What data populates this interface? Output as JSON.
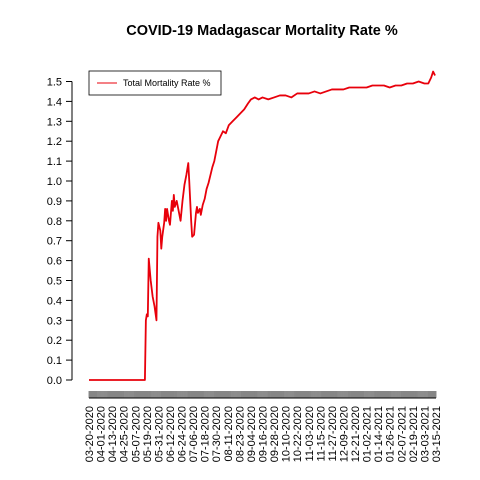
{
  "chart_data": {
    "type": "line",
    "title": "COVID-19 Madagascar Mortality Rate %",
    "xlabel": "",
    "ylabel": "",
    "ylim": [
      0,
      1.55
    ],
    "yticks": [
      "0.0",
      "0.1",
      "0.2",
      "0.3",
      "0.4",
      "0.5",
      "0.6",
      "0.7",
      "0.8",
      "0.9",
      "1.0",
      "1.1",
      "1.2",
      "1.3",
      "1.4",
      "1.5"
    ],
    "xticks": [
      "03-20-2020",
      "04-01-2020",
      "04-13-2020",
      "04-25-2020",
      "05-07-2020",
      "05-19-2020",
      "05-31-2020",
      "06-12-2020",
      "06-24-2020",
      "07-06-2020",
      "07-18-2020",
      "07-30-2020",
      "08-11-2020",
      "08-23-2020",
      "09-04-2020",
      "09-16-2020",
      "09-28-2020",
      "10-10-2020",
      "10-22-2020",
      "11-03-2020",
      "11-15-2020",
      "11-27-2020",
      "12-09-2020",
      "12-21-2020",
      "01-02-2021",
      "01-14-2021",
      "01-26-2021",
      "02-07-2021",
      "02-19-2021",
      "03-03-2021",
      "03-15-2021"
    ],
    "legend": {
      "position": "top-left",
      "entries": [
        "Total Mortality Rate %"
      ]
    },
    "grid": false,
    "series": [
      {
        "name": "Total Mortality Rate %",
        "color": "#e8000b",
        "points": [
          [
            "03-20-2020",
            0
          ],
          [
            "04-13-2020",
            0
          ],
          [
            "05-07-2020",
            0
          ],
          [
            "05-17-2020",
            0
          ],
          [
            "05-18-2020",
            0.3
          ],
          [
            "05-19-2020",
            0.33
          ],
          [
            "05-20-2020",
            0.32
          ],
          [
            "05-21-2020",
            0.61
          ],
          [
            "05-23-2020",
            0.5
          ],
          [
            "05-25-2020",
            0.42
          ],
          [
            "05-27-2020",
            0.37
          ],
          [
            "05-29-2020",
            0.3
          ],
          [
            "05-30-2020",
            0.72
          ],
          [
            "05-31-2020",
            0.79
          ],
          [
            "06-02-2020",
            0.75
          ],
          [
            "06-03-2020",
            0.66
          ],
          [
            "06-04-2020",
            0.72
          ],
          [
            "06-06-2020",
            0.79
          ],
          [
            "06-07-2020",
            0.86
          ],
          [
            "06-08-2020",
            0.8
          ],
          [
            "06-09-2020",
            0.86
          ],
          [
            "06-11-2020",
            0.8
          ],
          [
            "06-12-2020",
            0.78
          ],
          [
            "06-14-2020",
            0.9
          ],
          [
            "06-15-2020",
            0.85
          ],
          [
            "06-16-2020",
            0.93
          ],
          [
            "06-17-2020",
            0.87
          ],
          [
            "06-19-2020",
            0.9
          ],
          [
            "06-21-2020",
            0.85
          ],
          [
            "06-23-2020",
            0.8
          ],
          [
            "06-25-2020",
            0.9
          ],
          [
            "06-27-2020",
            0.98
          ],
          [
            "06-29-2020",
            1.03
          ],
          [
            "07-01-2020",
            1.09
          ],
          [
            "07-02-2020",
            1.0
          ],
          [
            "07-03-2020",
            0.9
          ],
          [
            "07-04-2020",
            0.8
          ],
          [
            "07-05-2020",
            0.72
          ],
          [
            "07-07-2020",
            0.73
          ],
          [
            "07-09-2020",
            0.84
          ],
          [
            "07-10-2020",
            0.87
          ],
          [
            "07-11-2020",
            0.84
          ],
          [
            "07-13-2020",
            0.86
          ],
          [
            "07-14-2020",
            0.83
          ],
          [
            "07-16-2020",
            0.88
          ],
          [
            "07-18-2020",
            0.91
          ],
          [
            "07-20-2020",
            0.96
          ],
          [
            "07-22-2020",
            0.99
          ],
          [
            "07-24-2020",
            1.03
          ],
          [
            "07-26-2020",
            1.07
          ],
          [
            "07-28-2020",
            1.1
          ],
          [
            "07-30-2020",
            1.15
          ],
          [
            "08-01-2020",
            1.2
          ],
          [
            "08-03-2020",
            1.22
          ],
          [
            "08-06-2020",
            1.25
          ],
          [
            "08-09-2020",
            1.24
          ],
          [
            "08-12-2020",
            1.28
          ],
          [
            "08-16-2020",
            1.3
          ],
          [
            "08-20-2020",
            1.32
          ],
          [
            "08-24-2020",
            1.34
          ],
          [
            "08-28-2020",
            1.36
          ],
          [
            "09-01-2020",
            1.39
          ],
          [
            "09-04-2020",
            1.41
          ],
          [
            "09-08-2020",
            1.42
          ],
          [
            "09-12-2020",
            1.41
          ],
          [
            "09-16-2020",
            1.42
          ],
          [
            "09-22-2020",
            1.41
          ],
          [
            "09-28-2020",
            1.42
          ],
          [
            "10-04-2020",
            1.43
          ],
          [
            "10-10-2020",
            1.43
          ],
          [
            "10-16-2020",
            1.42
          ],
          [
            "10-22-2020",
            1.44
          ],
          [
            "10-28-2020",
            1.44
          ],
          [
            "11-03-2020",
            1.44
          ],
          [
            "11-09-2020",
            1.45
          ],
          [
            "11-15-2020",
            1.44
          ],
          [
            "11-21-2020",
            1.45
          ],
          [
            "11-27-2020",
            1.46
          ],
          [
            "12-03-2020",
            1.46
          ],
          [
            "12-09-2020",
            1.46
          ],
          [
            "12-15-2020",
            1.47
          ],
          [
            "12-21-2020",
            1.47
          ],
          [
            "12-27-2020",
            1.47
          ],
          [
            "01-02-2021",
            1.47
          ],
          [
            "01-08-2021",
            1.48
          ],
          [
            "01-14-2021",
            1.48
          ],
          [
            "01-20-2021",
            1.48
          ],
          [
            "01-26-2021",
            1.47
          ],
          [
            "02-01-2021",
            1.48
          ],
          [
            "02-07-2021",
            1.48
          ],
          [
            "02-13-2021",
            1.49
          ],
          [
            "02-19-2021",
            1.49
          ],
          [
            "02-25-2021",
            1.5
          ],
          [
            "03-03-2021",
            1.49
          ],
          [
            "03-07-2021",
            1.49
          ],
          [
            "03-10-2021",
            1.52
          ],
          [
            "03-12-2021",
            1.55
          ],
          [
            "03-14-2021",
            1.53
          ]
        ]
      }
    ]
  }
}
